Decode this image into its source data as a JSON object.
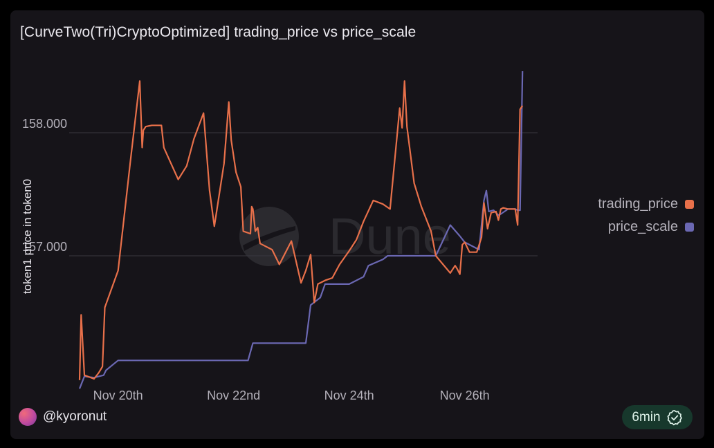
{
  "title": "[CurveTwo(Tri)CryptoOptimized] trading_price vs price_scale",
  "user": {
    "handle": "@kyoronut"
  },
  "refresh": {
    "label": "6min"
  },
  "watermark": "Dune",
  "colors": {
    "trading_price": "#e8704a",
    "price_scale": "#6b68b3",
    "background": "#161419",
    "grid": "#3a3840"
  },
  "icons": {
    "avatar": "avatar",
    "refresh": "check-badge-icon"
  },
  "chart_data": {
    "type": "line",
    "ylabel": "token1 price in token0",
    "xlabel": "",
    "yticks": [
      "158.000",
      "157.000"
    ],
    "ytick_values": [
      158,
      157
    ],
    "xticks": [
      "Nov 20th",
      "Nov 22nd",
      "Nov 24th",
      "Nov 26th"
    ],
    "xtick_values": [
      "2023-11-20",
      "2023-11-22",
      "2023-11-24",
      "2023-11-26"
    ],
    "legend_position": "right",
    "grid": true,
    "series": [
      {
        "name": "trading_price",
        "color": "#e8704a",
        "points": [
          [
            "2023-11-19 08:00",
            155.99
          ],
          [
            "2023-11-19 08:40",
            156.52
          ],
          [
            "2023-11-19 10:00",
            156.03
          ],
          [
            "2023-11-19 14:00",
            156.0
          ],
          [
            "2023-11-19 16:00",
            156.05
          ],
          [
            "2023-11-19 17:30",
            156.1
          ],
          [
            "2023-11-19 18:30",
            156.58
          ],
          [
            "2023-11-20 00:00",
            156.88
          ],
          [
            "2023-11-20 05:00",
            157.75
          ],
          [
            "2023-11-20 09:00",
            158.42
          ],
          [
            "2023-11-20 10:00",
            157.88
          ],
          [
            "2023-11-20 10:30",
            158.02
          ],
          [
            "2023-11-20 11:30",
            158.05
          ],
          [
            "2023-11-20 14:00",
            158.06
          ],
          [
            "2023-11-20 18:00",
            158.06
          ],
          [
            "2023-11-20 19:00",
            157.88
          ],
          [
            "2023-11-21 01:00",
            157.62
          ],
          [
            "2023-11-21 04:30",
            157.73
          ],
          [
            "2023-11-21 07:30",
            157.95
          ],
          [
            "2023-11-21 11:30",
            158.16
          ],
          [
            "2023-11-21 14:00",
            157.53
          ],
          [
            "2023-11-21 16:00",
            157.24
          ],
          [
            "2023-11-21 20:00",
            157.75
          ],
          [
            "2023-11-21 22:00",
            158.25
          ],
          [
            "2023-11-21 23:00",
            157.94
          ],
          [
            "2023-11-22 01:00",
            157.68
          ],
          [
            "2023-11-22 03:00",
            157.56
          ],
          [
            "2023-11-22 04:00",
            157.2
          ],
          [
            "2023-11-22 07:00",
            157.18
          ],
          [
            "2023-11-22 07:30",
            157.4
          ],
          [
            "2023-11-22 08:00",
            157.38
          ],
          [
            "2023-11-22 09:00",
            157.2
          ],
          [
            "2023-11-22 10:00",
            157.23
          ],
          [
            "2023-11-22 11:00",
            157.1
          ],
          [
            "2023-11-22 16:00",
            157.05
          ],
          [
            "2023-11-22 19:00",
            156.93
          ],
          [
            "2023-11-23 00:00",
            157.12
          ],
          [
            "2023-11-23 04:00",
            156.78
          ],
          [
            "2023-11-23 06:00",
            156.88
          ],
          [
            "2023-11-23 08:00",
            157.01
          ],
          [
            "2023-11-23 09:30",
            156.62
          ],
          [
            "2023-11-23 11:00",
            156.77
          ],
          [
            "2023-11-23 14:00",
            156.8
          ],
          [
            "2023-11-23 17:00",
            156.82
          ],
          [
            "2023-11-23 20:00",
            156.93
          ],
          [
            "2023-11-24 00:00",
            157.04
          ],
          [
            "2023-11-24 03:00",
            157.13
          ],
          [
            "2023-11-24 06:00",
            157.28
          ],
          [
            "2023-11-24 10:00",
            157.45
          ],
          [
            "2023-11-24 14:00",
            157.42
          ],
          [
            "2023-11-24 17:00",
            157.38
          ],
          [
            "2023-11-24 21:00",
            158.2
          ],
          [
            "2023-11-24 22:00",
            158.04
          ],
          [
            "2023-11-24 23:00",
            158.42
          ],
          [
            "2023-11-25 00:00",
            158.05
          ],
          [
            "2023-11-25 03:00",
            157.59
          ],
          [
            "2023-11-25 06:00",
            157.4
          ],
          [
            "2023-11-25 10:00",
            157.2
          ],
          [
            "2023-11-25 12:00",
            157.0
          ],
          [
            "2023-11-25 15:00",
            156.93
          ],
          [
            "2023-11-25 18:00",
            156.86
          ],
          [
            "2023-11-25 20:00",
            156.92
          ],
          [
            "2023-11-25 21:00",
            156.89
          ],
          [
            "2023-11-25 22:00",
            156.85
          ],
          [
            "2023-11-25 23:00",
            157.09
          ],
          [
            "2023-11-26 00:00",
            157.11
          ],
          [
            "2023-11-26 02:00",
            157.03
          ],
          [
            "2023-11-26 05:00",
            157.03
          ],
          [
            "2023-11-26 07:00",
            157.15
          ],
          [
            "2023-11-26 08:00",
            157.43
          ],
          [
            "2023-11-26 09:30",
            157.22
          ],
          [
            "2023-11-26 11:00",
            157.35
          ],
          [
            "2023-11-26 13:00",
            157.36
          ],
          [
            "2023-11-26 14:00",
            157.29
          ],
          [
            "2023-11-26 15:00",
            157.38
          ],
          [
            "2023-11-26 16:00",
            157.39
          ],
          [
            "2023-11-26 18:00",
            157.38
          ],
          [
            "2023-11-26 21:00",
            157.38
          ],
          [
            "2023-11-26 22:00",
            157.25
          ],
          [
            "2023-11-26 23:00",
            158.19
          ],
          [
            "2023-11-27 00:00",
            158.22
          ]
        ]
      },
      {
        "name": "price_scale",
        "color": "#6b68b3",
        "points": [
          [
            "2023-11-19 08:00",
            155.92
          ],
          [
            "2023-11-19 10:00",
            156.02
          ],
          [
            "2023-11-19 14:00",
            156.01
          ],
          [
            "2023-11-19 18:00",
            156.03
          ],
          [
            "2023-11-19 19:00",
            156.07
          ],
          [
            "2023-11-20 00:00",
            156.15
          ],
          [
            "2023-11-22 06:00",
            156.15
          ],
          [
            "2023-11-22 08:00",
            156.29
          ],
          [
            "2023-11-23 06:00",
            156.29
          ],
          [
            "2023-11-23 08:00",
            156.6
          ],
          [
            "2023-11-23 12:00",
            156.66
          ],
          [
            "2023-11-23 14:00",
            156.77
          ],
          [
            "2023-11-24 00:00",
            156.77
          ],
          [
            "2023-11-24 06:00",
            156.83
          ],
          [
            "2023-11-24 08:00",
            156.92
          ],
          [
            "2023-11-24 14:00",
            156.97
          ],
          [
            "2023-11-24 16:00",
            157.0
          ],
          [
            "2023-11-24 18:00",
            157.0
          ],
          [
            "2023-11-25 00:00",
            157.0
          ],
          [
            "2023-11-25 12:00",
            157.0
          ],
          [
            "2023-11-25 18:00",
            157.25
          ],
          [
            "2023-11-25 22:00",
            157.16
          ],
          [
            "2023-11-26 00:00",
            157.11
          ],
          [
            "2023-11-26 06:00",
            157.05
          ],
          [
            "2023-11-26 08:00",
            157.45
          ],
          [
            "2023-11-26 09:00",
            157.53
          ],
          [
            "2023-11-26 10:00",
            157.36
          ],
          [
            "2023-11-26 12:00",
            157.37
          ],
          [
            "2023-11-26 14:00",
            157.33
          ],
          [
            "2023-11-26 15:00",
            157.34
          ],
          [
            "2023-11-26 18:00",
            157.38
          ],
          [
            "2023-11-26 21:00",
            157.38
          ],
          [
            "2023-11-26 22:00",
            157.37
          ],
          [
            "2023-11-26 23:00",
            157.37
          ],
          [
            "2023-11-27 00:00",
            158.5
          ]
        ]
      }
    ]
  }
}
